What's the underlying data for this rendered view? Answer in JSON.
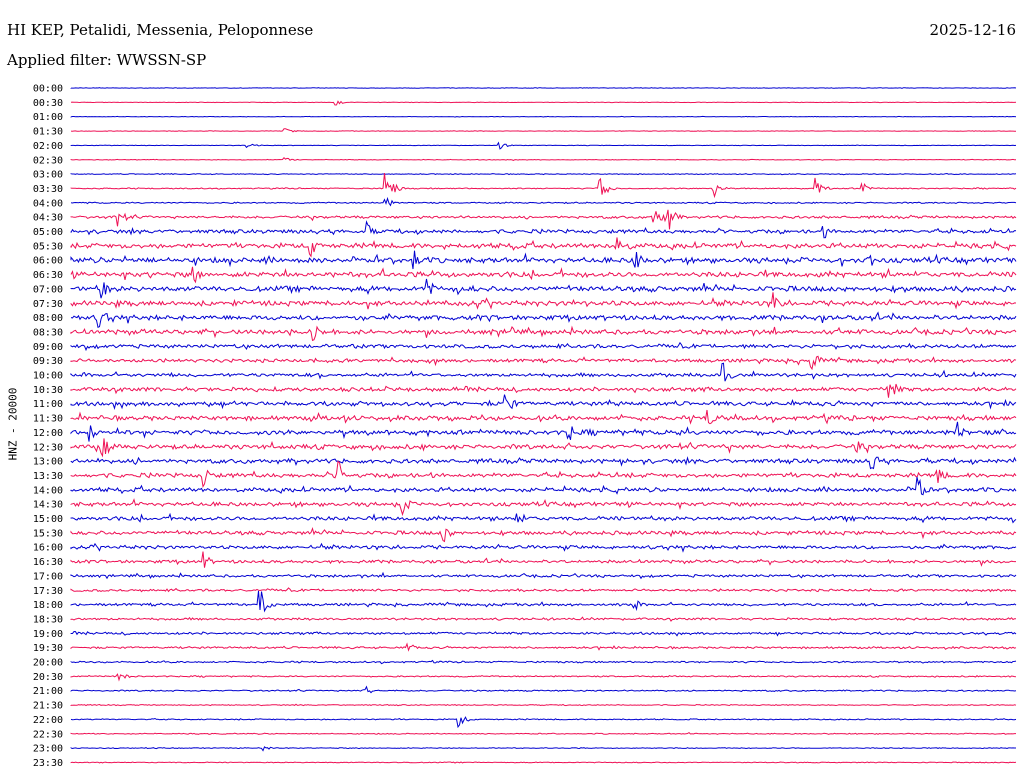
{
  "header": {
    "station": "HI KEP, Petalidi, Messenia, Peloponnese",
    "date": "2025-12-16",
    "filter": "Applied filter: WWSSN-SP",
    "channel": "HNZ - 20000"
  },
  "colors": {
    "odd": "#0000d0",
    "even": "#ee1155",
    "text": "#000000"
  },
  "chart_data": {
    "type": "line",
    "title": "HI KEP, Petalidi, Messenia, Peloponnese",
    "ylabel": "HNZ - 20000",
    "xlabel": "",
    "grid": false,
    "row_labels": [
      "00:00",
      "00:30",
      "01:00",
      "01:30",
      "02:00",
      "02:30",
      "03:00",
      "03:30",
      "04:00",
      "04:30",
      "05:00",
      "05:30",
      "06:00",
      "06:30",
      "07:00",
      "07:30",
      "08:00",
      "08:30",
      "09:00",
      "09:30",
      "10:00",
      "10:30",
      "11:00",
      "11:30",
      "12:00",
      "12:30",
      "13:00",
      "13:30",
      "14:00",
      "14:30",
      "15:00",
      "15:30",
      "16:00",
      "16:30",
      "17:00",
      "17:30",
      "18:00",
      "18:30",
      "19:00",
      "19:30",
      "20:00",
      "20:30",
      "21:00",
      "21:30",
      "22:00",
      "22:30",
      "23:00",
      "23:30"
    ],
    "row_noise_level": [
      0.3,
      0.3,
      0.3,
      0.3,
      0.3,
      0.4,
      0.5,
      0.7,
      0.8,
      1.5,
      2.2,
      2.8,
      3.0,
      3.0,
      3.0,
      2.8,
      2.8,
      2.7,
      2.2,
      2.0,
      2.0,
      2.3,
      2.4,
      2.6,
      2.7,
      2.6,
      2.5,
      2.5,
      2.4,
      2.3,
      2.3,
      2.2,
      2.0,
      1.8,
      1.5,
      1.4,
      1.5,
      1.3,
      1.4,
      1.2,
      1.0,
      0.8,
      0.8,
      0.6,
      0.7,
      0.6,
      0.5,
      0.5
    ],
    "events": [
      {
        "row": 1,
        "minute": 8.4,
        "amplitude": 3
      },
      {
        "row": 3,
        "minute": 6.8,
        "amplitude": 3
      },
      {
        "row": 4,
        "minute": 5.6,
        "amplitude": 4
      },
      {
        "row": 4,
        "minute": 13.6,
        "amplitude": 4
      },
      {
        "row": 5,
        "minute": 6.8,
        "amplitude": 3
      },
      {
        "row": 7,
        "minute": 10.0,
        "amplitude": 20
      },
      {
        "row": 7,
        "minute": 16.8,
        "amplitude": 12
      },
      {
        "row": 7,
        "minute": 20.4,
        "amplitude": 10
      },
      {
        "row": 7,
        "minute": 23.6,
        "amplitude": 14
      },
      {
        "row": 7,
        "minute": 25.1,
        "amplitude": 8
      },
      {
        "row": 8,
        "minute": 10.0,
        "amplitude": 6
      },
      {
        "row": 9,
        "minute": 1.5,
        "amplitude": 12
      },
      {
        "row": 9,
        "minute": 18.5,
        "amplitude": 14
      },
      {
        "row": 9,
        "minute": 18.9,
        "amplitude": 20
      },
      {
        "row": 10,
        "minute": 9.4,
        "amplitude": 10
      },
      {
        "row": 10,
        "minute": 23.9,
        "amplitude": 8
      },
      {
        "row": 11,
        "minute": 7.6,
        "amplitude": 12
      },
      {
        "row": 11,
        "minute": 17.3,
        "amplitude": 20
      },
      {
        "row": 12,
        "minute": 10.9,
        "amplitude": 10
      },
      {
        "row": 12,
        "minute": 17.9,
        "amplitude": 12
      },
      {
        "row": 12,
        "minute": 25.3,
        "amplitude": 10
      },
      {
        "row": 13,
        "minute": 3.9,
        "amplitude": 10
      },
      {
        "row": 14,
        "minute": 1.0,
        "amplitude": 10
      },
      {
        "row": 14,
        "minute": 11.3,
        "amplitude": 12
      },
      {
        "row": 15,
        "minute": 22.3,
        "amplitude": 12
      },
      {
        "row": 16,
        "minute": 0.9,
        "amplitude": 14
      },
      {
        "row": 17,
        "minute": 7.7,
        "amplitude": 14
      },
      {
        "row": 17,
        "minute": 13.9,
        "amplitude": 10
      },
      {
        "row": 19,
        "minute": 23.5,
        "amplitude": 14
      },
      {
        "row": 20,
        "minute": 20.7,
        "amplitude": 14
      },
      {
        "row": 21,
        "minute": 26.0,
        "amplitude": 16
      },
      {
        "row": 22,
        "minute": 13.8,
        "amplitude": 14
      },
      {
        "row": 23,
        "minute": 20.2,
        "amplitude": 14
      },
      {
        "row": 24,
        "minute": 0.6,
        "amplitude": 10
      },
      {
        "row": 24,
        "minute": 15.8,
        "amplitude": 10
      },
      {
        "row": 24,
        "minute": 28.1,
        "amplitude": 14
      },
      {
        "row": 25,
        "minute": 1.0,
        "amplitude": 14
      },
      {
        "row": 25,
        "minute": 24.9,
        "amplitude": 10
      },
      {
        "row": 26,
        "minute": 25.4,
        "amplitude": 12
      },
      {
        "row": 27,
        "minute": 4.2,
        "amplitude": 14
      },
      {
        "row": 27,
        "minute": 8.4,
        "amplitude": 24
      },
      {
        "row": 27,
        "minute": 27.5,
        "amplitude": 12
      },
      {
        "row": 28,
        "minute": 26.9,
        "amplitude": 14
      },
      {
        "row": 29,
        "minute": 10.5,
        "amplitude": 12
      },
      {
        "row": 30,
        "minute": 14.1,
        "amplitude": 14
      },
      {
        "row": 31,
        "minute": 11.8,
        "amplitude": 12
      },
      {
        "row": 33,
        "minute": 4.2,
        "amplitude": 10
      },
      {
        "row": 36,
        "minute": 6.0,
        "amplitude": 18
      },
      {
        "row": 36,
        "minute": 17.9,
        "amplitude": 6
      },
      {
        "row": 39,
        "minute": 10.7,
        "amplitude": 6
      },
      {
        "row": 41,
        "minute": 1.5,
        "amplitude": 6
      },
      {
        "row": 42,
        "minute": 9.3,
        "amplitude": 6
      },
      {
        "row": 44,
        "minute": 12.3,
        "amplitude": 8
      },
      {
        "row": 46,
        "minute": 6.1,
        "amplitude": 4
      }
    ]
  }
}
